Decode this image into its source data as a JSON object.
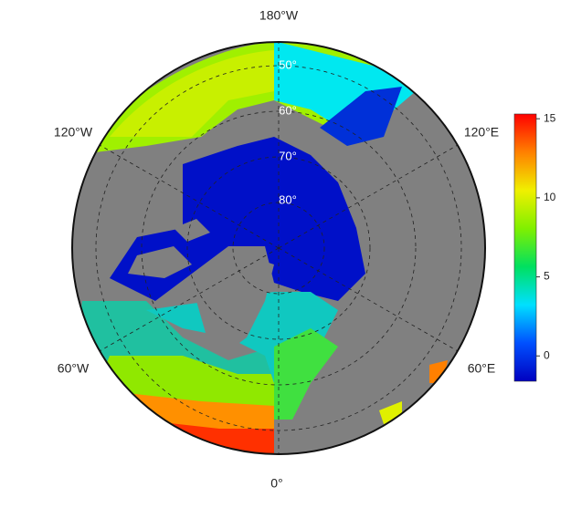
{
  "map": {
    "lon_labels": [
      "180°W",
      "120°W",
      "120°E",
      "60°W",
      "60°E",
      "0°"
    ],
    "lat_labels": [
      "50°",
      "60°",
      "70°",
      "80°"
    ]
  },
  "colorbar": {
    "lim": [
      -1.6,
      15.3
    ],
    "ticks": [
      0,
      5,
      10,
      15
    ],
    "colors": [
      "#0000c0",
      "#0050ff",
      "#00e0ff",
      "#00e060",
      "#80f000",
      "#f0f000",
      "#ff8000",
      "#ff0000"
    ]
  }
}
